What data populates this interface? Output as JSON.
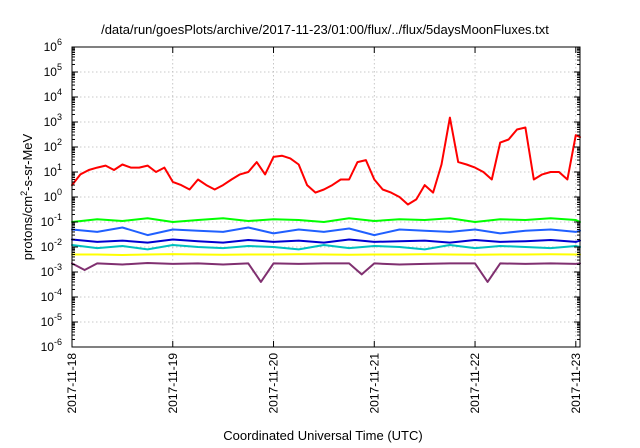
{
  "chart_data": {
    "type": "line",
    "title": "/data/run/goesPlots/archive/2017-11-23/01:00/flux/../flux/5daysMoonFluxes.txt",
    "xlabel": "Coordinated Universal Time (UTC)",
    "ylabel_parts": [
      "protons/cm",
      "2",
      "-s-sr-MeV"
    ],
    "yscale": "log",
    "ylim": [
      1e-06,
      1000000.0
    ],
    "xlim": [
      "2017-11-18T00:00",
      "2017-11-23T01:00"
    ],
    "grid": true,
    "legend": "none",
    "y_tick_labels": [
      {
        "base": "10",
        "exp": "-6"
      },
      {
        "base": "10",
        "exp": "-5"
      },
      {
        "base": "10",
        "exp": "-4"
      },
      {
        "base": "10",
        "exp": "-3"
      },
      {
        "base": "10",
        "exp": "-2"
      },
      {
        "base": "10",
        "exp": "-1"
      },
      {
        "base": "10",
        "exp": "0"
      },
      {
        "base": "10",
        "exp": "1"
      },
      {
        "base": "10",
        "exp": "2"
      },
      {
        "base": "10",
        "exp": "3"
      },
      {
        "base": "10",
        "exp": "4"
      },
      {
        "base": "10",
        "exp": "5"
      },
      {
        "base": "10",
        "exp": "6"
      }
    ],
    "x_tick_labels": [
      "2017-11-18",
      "2017-11-19",
      "2017-11-20",
      "2017-11-21",
      "2017-11-22",
      "2017-11-23"
    ],
    "series": [
      {
        "color": "#ff0000",
        "x": [
          "2017-11-18T00:00",
          "2017-11-18T02:00",
          "2017-11-18T04:00",
          "2017-11-18T06:00",
          "2017-11-18T08:00",
          "2017-11-18T10:00",
          "2017-11-18T12:00",
          "2017-11-18T14:00",
          "2017-11-18T16:00",
          "2017-11-18T18:00",
          "2017-11-18T20:00",
          "2017-11-18T22:00",
          "2017-11-19T00:00",
          "2017-11-19T02:00",
          "2017-11-19T04:00",
          "2017-11-19T06:00",
          "2017-11-19T08:00",
          "2017-11-19T10:00",
          "2017-11-19T12:00",
          "2017-11-19T14:00",
          "2017-11-19T16:00",
          "2017-11-19T18:00",
          "2017-11-19T20:00",
          "2017-11-19T22:00",
          "2017-11-20T00:00",
          "2017-11-20T02:00",
          "2017-11-20T04:00",
          "2017-11-20T06:00",
          "2017-11-20T08:00",
          "2017-11-20T10:00",
          "2017-11-20T12:00",
          "2017-11-20T14:00",
          "2017-11-20T16:00",
          "2017-11-20T18:00",
          "2017-11-20T20:00",
          "2017-11-20T22:00",
          "2017-11-21T00:00",
          "2017-11-21T02:00",
          "2017-11-21T04:00",
          "2017-11-21T06:00",
          "2017-11-21T08:00",
          "2017-11-21T10:00",
          "2017-11-21T12:00",
          "2017-11-21T14:00",
          "2017-11-21T16:00",
          "2017-11-21T18:00",
          "2017-11-21T20:00",
          "2017-11-21T22:00",
          "2017-11-22T00:00",
          "2017-11-22T02:00",
          "2017-11-22T04:00",
          "2017-11-22T06:00",
          "2017-11-22T08:00",
          "2017-11-22T10:00",
          "2017-11-22T12:00",
          "2017-11-22T14:00",
          "2017-11-22T16:00",
          "2017-11-22T18:00",
          "2017-11-22T20:00",
          "2017-11-22T22:00",
          "2017-11-23T00:00",
          "2017-11-23T01:00"
        ],
        "values": [
          3,
          8,
          12,
          15,
          18,
          12,
          20,
          15,
          15,
          18,
          10,
          15,
          4,
          3,
          2,
          5,
          3,
          2,
          3,
          5,
          8,
          10,
          25,
          8,
          40,
          45,
          35,
          20,
          3,
          1.5,
          2,
          3,
          5,
          5,
          25,
          30,
          5,
          2,
          1.5,
          1,
          0.5,
          0.8,
          3,
          1.5,
          20,
          1500,
          25,
          20,
          15,
          10,
          5,
          150,
          200,
          500,
          600,
          5,
          8,
          10,
          10,
          5,
          300,
          250
        ]
      },
      {
        "color": "#00ff00",
        "x": [
          "2017-11-18T00:00",
          "2017-11-18T06:00",
          "2017-11-18T12:00",
          "2017-11-18T18:00",
          "2017-11-19T00:00",
          "2017-11-19T06:00",
          "2017-11-19T12:00",
          "2017-11-19T18:00",
          "2017-11-20T00:00",
          "2017-11-20T06:00",
          "2017-11-20T12:00",
          "2017-11-20T18:00",
          "2017-11-21T00:00",
          "2017-11-21T06:00",
          "2017-11-21T12:00",
          "2017-11-21T18:00",
          "2017-11-22T00:00",
          "2017-11-22T06:00",
          "2017-11-22T12:00",
          "2017-11-22T18:00",
          "2017-11-23T00:00",
          "2017-11-23T01:00"
        ],
        "values": [
          0.1,
          0.13,
          0.11,
          0.14,
          0.1,
          0.12,
          0.14,
          0.11,
          0.13,
          0.12,
          0.1,
          0.14,
          0.11,
          0.13,
          0.12,
          0.14,
          0.1,
          0.13,
          0.12,
          0.14,
          0.12,
          0.1
        ]
      },
      {
        "color": "#00c0c0",
        "x": [
          "2017-11-18T00:00",
          "2017-11-18T06:00",
          "2017-11-18T12:00",
          "2017-11-18T18:00",
          "2017-11-19T00:00",
          "2017-11-19T06:00",
          "2017-11-19T12:00",
          "2017-11-19T18:00",
          "2017-11-20T00:00",
          "2017-11-20T06:00",
          "2017-11-20T12:00",
          "2017-11-20T18:00",
          "2017-11-21T00:00",
          "2017-11-21T06:00",
          "2017-11-21T12:00",
          "2017-11-21T18:00",
          "2017-11-22T00:00",
          "2017-11-22T06:00",
          "2017-11-22T12:00",
          "2017-11-22T18:00",
          "2017-11-23T00:00",
          "2017-11-23T01:00"
        ],
        "values": [
          0.012,
          0.009,
          0.011,
          0.008,
          0.012,
          0.01,
          0.009,
          0.011,
          0.01,
          0.008,
          0.012,
          0.009,
          0.011,
          0.01,
          0.008,
          0.012,
          0.009,
          0.011,
          0.01,
          0.009,
          0.011,
          0.01
        ]
      },
      {
        "color": "#2060ff",
        "x": [
          "2017-11-18T00:00",
          "2017-11-18T06:00",
          "2017-11-18T12:00",
          "2017-11-18T18:00",
          "2017-11-19T00:00",
          "2017-11-19T06:00",
          "2017-11-19T12:00",
          "2017-11-19T18:00",
          "2017-11-20T00:00",
          "2017-11-20T06:00",
          "2017-11-20T12:00",
          "2017-11-20T18:00",
          "2017-11-21T00:00",
          "2017-11-21T06:00",
          "2017-11-21T12:00",
          "2017-11-21T18:00",
          "2017-11-22T00:00",
          "2017-11-22T06:00",
          "2017-11-22T12:00",
          "2017-11-22T18:00",
          "2017-11-23T00:00",
          "2017-11-23T01:00"
        ],
        "values": [
          0.05,
          0.04,
          0.06,
          0.03,
          0.05,
          0.045,
          0.04,
          0.06,
          0.035,
          0.05,
          0.04,
          0.055,
          0.03,
          0.05,
          0.045,
          0.04,
          0.05,
          0.035,
          0.045,
          0.05,
          0.04,
          0.045
        ]
      },
      {
        "color": "#0000d0",
        "x": [
          "2017-11-18T00:00",
          "2017-11-18T06:00",
          "2017-11-18T12:00",
          "2017-11-18T18:00",
          "2017-11-19T00:00",
          "2017-11-19T06:00",
          "2017-11-19T12:00",
          "2017-11-19T18:00",
          "2017-11-20T00:00",
          "2017-11-20T06:00",
          "2017-11-20T12:00",
          "2017-11-20T18:00",
          "2017-11-21T00:00",
          "2017-11-21T06:00",
          "2017-11-21T12:00",
          "2017-11-21T18:00",
          "2017-11-22T00:00",
          "2017-11-22T06:00",
          "2017-11-22T12:00",
          "2017-11-22T18:00",
          "2017-11-23T00:00",
          "2017-11-23T01:00"
        ],
        "values": [
          0.02,
          0.016,
          0.018,
          0.015,
          0.02,
          0.017,
          0.015,
          0.019,
          0.016,
          0.018,
          0.015,
          0.02,
          0.016,
          0.017,
          0.018,
          0.015,
          0.019,
          0.016,
          0.017,
          0.019,
          0.016,
          0.018
        ]
      },
      {
        "color": "#ffff00",
        "x": [
          "2017-11-18T00:00",
          "2017-11-18T06:00",
          "2017-11-18T12:00",
          "2017-11-18T18:00",
          "2017-11-19T00:00",
          "2017-11-19T06:00",
          "2017-11-19T12:00",
          "2017-11-19T18:00",
          "2017-11-20T00:00",
          "2017-11-20T06:00",
          "2017-11-20T12:00",
          "2017-11-20T18:00",
          "2017-11-21T00:00",
          "2017-11-21T06:00",
          "2017-11-21T12:00",
          "2017-11-21T18:00",
          "2017-11-22T00:00",
          "2017-11-22T06:00",
          "2017-11-22T12:00",
          "2017-11-22T18:00",
          "2017-11-23T00:00",
          "2017-11-23T01:00"
        ],
        "values": [
          0.005,
          0.005,
          0.0048,
          0.005,
          0.0052,
          0.005,
          0.0049,
          0.005,
          0.005,
          0.0051,
          0.005,
          0.0049,
          0.005,
          0.005,
          0.0051,
          0.005,
          0.0049,
          0.005,
          0.005,
          0.0051,
          0.005,
          0.005
        ]
      },
      {
        "color": "#803070",
        "x": [
          "2017-11-18T00:00",
          "2017-11-18T03:00",
          "2017-11-18T06:00",
          "2017-11-18T12:00",
          "2017-11-18T18:00",
          "2017-11-19T00:00",
          "2017-11-19T06:00",
          "2017-11-19T12:00",
          "2017-11-19T18:00",
          "2017-11-19T21:00",
          "2017-11-20T00:00",
          "2017-11-20T06:00",
          "2017-11-20T12:00",
          "2017-11-20T18:00",
          "2017-11-20T21:00",
          "2017-11-21T00:00",
          "2017-11-21T06:00",
          "2017-11-21T12:00",
          "2017-11-21T18:00",
          "2017-11-22T00:00",
          "2017-11-22T03:00",
          "2017-11-22T06:00",
          "2017-11-22T12:00",
          "2017-11-22T18:00",
          "2017-11-23T00:00",
          "2017-11-23T01:00"
        ],
        "values": [
          0.0022,
          0.0012,
          0.0022,
          0.002,
          0.0023,
          0.0021,
          0.0022,
          0.002,
          0.0022,
          0.0004,
          0.0022,
          0.0021,
          0.0022,
          0.0022,
          0.0008,
          0.0022,
          0.002,
          0.0021,
          0.0022,
          0.0022,
          0.0004,
          0.0022,
          0.0021,
          0.0022,
          0.0021,
          0.0022
        ]
      }
    ]
  }
}
